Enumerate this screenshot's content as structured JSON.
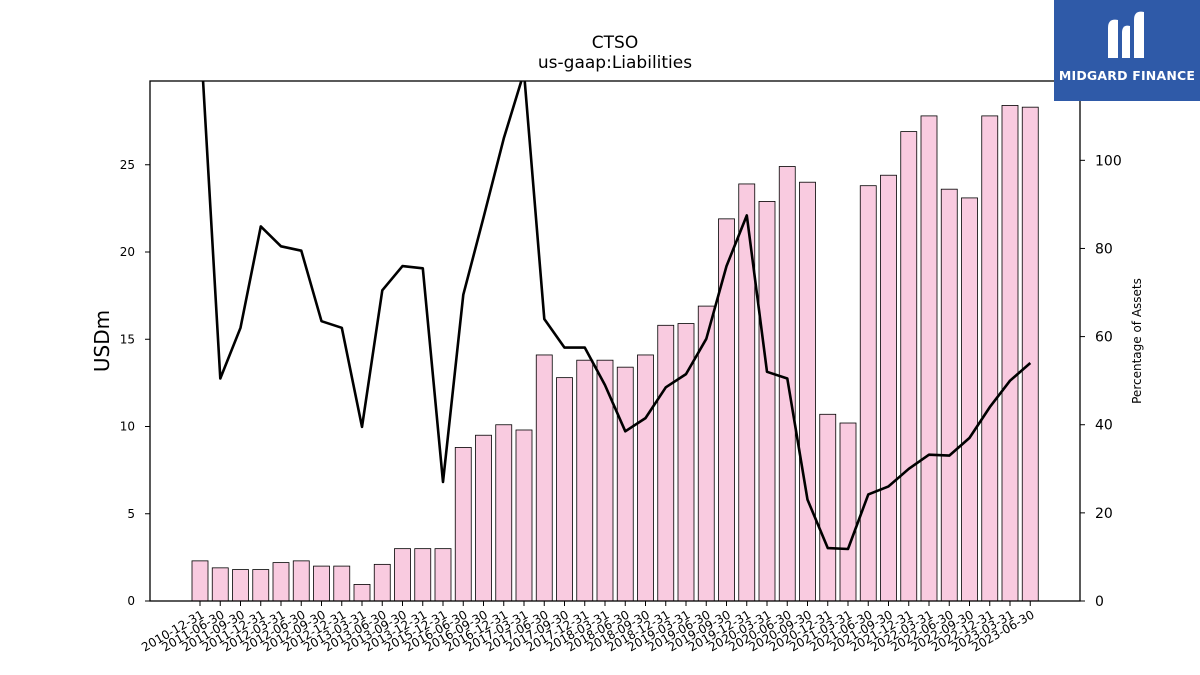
{
  "chart_data": {
    "type": "bar+line",
    "title": "CTSO",
    "subtitle": "us-gaap:Liabilities",
    "ylabel_left": "USDm",
    "ylabel_right": "Percentage of Assets",
    "ylim_left": [
      0,
      29.8
    ],
    "ylim_right": [
      0,
      118
    ],
    "yticks_left": [
      0,
      5,
      10,
      15,
      20,
      25
    ],
    "yticks_right": [
      0,
      20,
      40,
      60,
      80,
      100
    ],
    "bar_color": "#f9cbe0",
    "line_color": "#000000",
    "categories": [
      "2010-12-31",
      "2011-06-30",
      "2011-09-30",
      "2011-12-31",
      "2012-03-31",
      "2012-06-30",
      "2012-09-30",
      "2012-12-31",
      "2013-03-31",
      "2013-06-30",
      "2013-09-30",
      "2013-12-31",
      "2015-12-31",
      "2016-06-30",
      "2016-09-30",
      "2016-12-31",
      "2017-03-31",
      "2017-06-30",
      "2017-09-30",
      "2017-12-31",
      "2018-03-31",
      "2018-06-30",
      "2018-09-30",
      "2018-12-31",
      "2019-03-31",
      "2019-06-30",
      "2019-09-30",
      "2019-12-31",
      "2020-03-31",
      "2020-06-30",
      "2020-09-30",
      "2020-12-31",
      "2021-03-31",
      "2021-06-30",
      "2021-09-30",
      "2021-12-31",
      "2022-03-31",
      "2022-06-30",
      "2022-09-30",
      "2022-12-31",
      "2023-03-31",
      "2023-06-30"
    ],
    "series": [
      {
        "type": "bar",
        "axis": "left",
        "values": [
          2.3,
          1.9,
          1.8,
          1.8,
          2.2,
          2.3,
          2.0,
          2.0,
          0.95,
          2.1,
          3.0,
          3.0,
          3.0,
          8.8,
          9.5,
          10.1,
          9.8,
          14.1,
          12.8,
          13.8,
          13.8,
          13.4,
          14.1,
          15.8,
          15.9,
          16.9,
          21.9,
          23.9,
          22.9,
          24.9,
          24.0,
          10.7,
          10.2,
          23.8,
          24.4,
          26.9,
          27.8,
          23.6,
          23.1,
          27.8,
          28.4,
          28.3
        ]
      },
      {
        "type": "line",
        "axis": "right",
        "values": [
          130,
          50.5,
          62,
          85,
          80.5,
          79.5,
          63.5,
          62,
          39.5,
          70.5,
          76,
          75.5,
          27,
          69.5,
          87,
          105,
          120,
          64,
          57.5,
          57.5,
          49,
          38.5,
          41.5,
          48.5,
          51.5,
          59.5,
          76,
          87.5,
          52,
          50.5,
          23,
          12,
          11.8,
          24.2,
          26,
          30,
          33.2,
          33,
          37,
          44,
          50,
          54
        ]
      }
    ]
  },
  "logo": {
    "text": "MIDGARD FINANCE",
    "background": "#2f5aa8",
    "icon": "midgard-mark-icon"
  }
}
